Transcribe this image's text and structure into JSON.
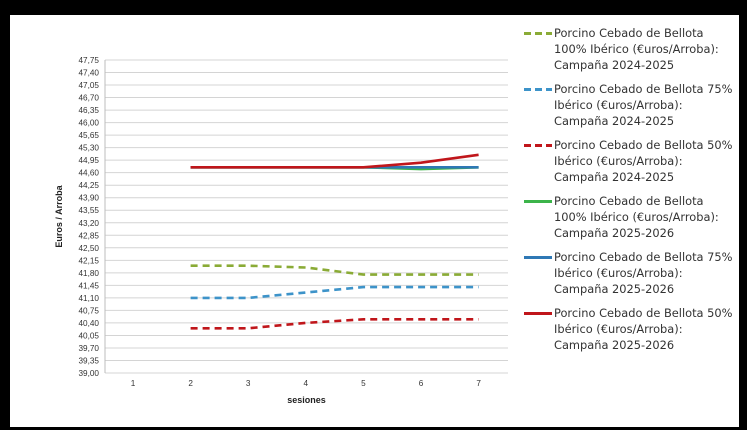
{
  "chart_data": {
    "type": "line",
    "xlabel": "sesiones",
    "ylabel": "Euros / Arroba",
    "x": [
      1,
      2,
      3,
      4,
      5,
      6,
      7
    ],
    "ylim": [
      39.0,
      47.75
    ],
    "ytick_step": 0.35,
    "grid": "horizontal",
    "legend_position": "right",
    "series": [
      {
        "name": "Porcino Cebado de Bellota 100% Ibérico (€uros/Arroba): Campaña 2024-2025",
        "color": "#8aab36",
        "style": "dashed",
        "x": [
          2,
          3,
          4,
          5,
          6,
          7
        ],
        "values": [
          42.0,
          42.0,
          41.95,
          41.75,
          41.75,
          41.75
        ]
      },
      {
        "name": "Porcino Cebado de Bellota 75% Ibérico (€uros/Arroba): Campaña 2024-2025",
        "color": "#3d93c9",
        "style": "dashed",
        "x": [
          2,
          3,
          4,
          5,
          6,
          7
        ],
        "values": [
          41.1,
          41.1,
          41.25,
          41.4,
          41.4,
          41.4
        ]
      },
      {
        "name": "Porcino Cebado de Bellota 50% Ibérico (€uros/Arroba): Campaña 2024-2025",
        "color": "#c0161b",
        "style": "dashed",
        "x": [
          2,
          3,
          4,
          5,
          6,
          7
        ],
        "values": [
          40.25,
          40.25,
          40.4,
          40.5,
          40.5,
          40.5
        ]
      },
      {
        "name": "Porcino Cebado de Bellota 100% Ibérico (€uros/Arroba): Campaña 2025-2026",
        "color": "#3cb44a",
        "style": "solid",
        "x": [
          2,
          3,
          4,
          5,
          6,
          7
        ],
        "values": [
          44.75,
          44.75,
          44.75,
          44.75,
          44.7,
          44.75
        ]
      },
      {
        "name": "Porcino Cebado de Bellota 75% Ibérico (€uros/Arroba): Campaña 2025-2026",
        "color": "#2f78b5",
        "style": "solid",
        "x": [
          2,
          3,
          4,
          5,
          6,
          7
        ],
        "values": [
          44.75,
          44.75,
          44.75,
          44.75,
          44.75,
          44.75
        ]
      },
      {
        "name": "Porcino Cebado de Bellota 50% Ibérico (€uros/Arroba): Campaña 2025-2026",
        "color": "#c0161b",
        "style": "solid",
        "x": [
          2,
          3,
          4,
          5,
          6,
          7
        ],
        "values": [
          44.75,
          44.75,
          44.75,
          44.75,
          44.88,
          45.1
        ]
      }
    ]
  }
}
